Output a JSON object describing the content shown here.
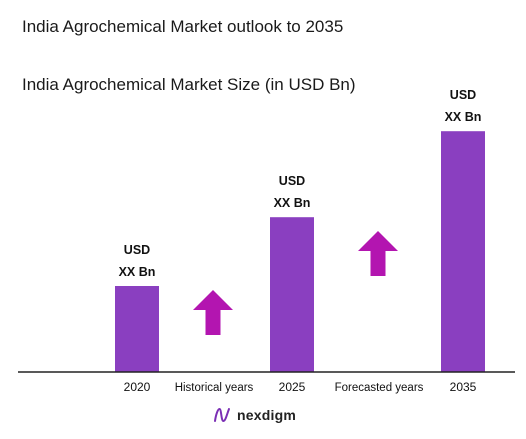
{
  "title": "India Agrochemical Market outlook to 2035",
  "chart_data": {
    "type": "bar",
    "title": "India Agrochemical Market Size (in USD Bn)",
    "categories": [
      "2020",
      "2025",
      "2035"
    ],
    "values": [
      1.0,
      1.8,
      2.8
    ],
    "data_labels": [
      [
        "USD",
        "XX Bn"
      ],
      [
        "USD",
        "XX Bn"
      ],
      [
        "USD",
        "XX Bn"
      ]
    ],
    "period_labels": [
      "Historical years",
      "Forecasted years"
    ],
    "bar_color": "#8a3fc0",
    "arrow_color": "#b315b0",
    "ylim": [
      0,
      3.0
    ],
    "grid": false,
    "legend": "none"
  },
  "brand": {
    "name": "nexdigm",
    "icon": "nexdigm-logo-icon",
    "color": "#7b2fb5"
  }
}
